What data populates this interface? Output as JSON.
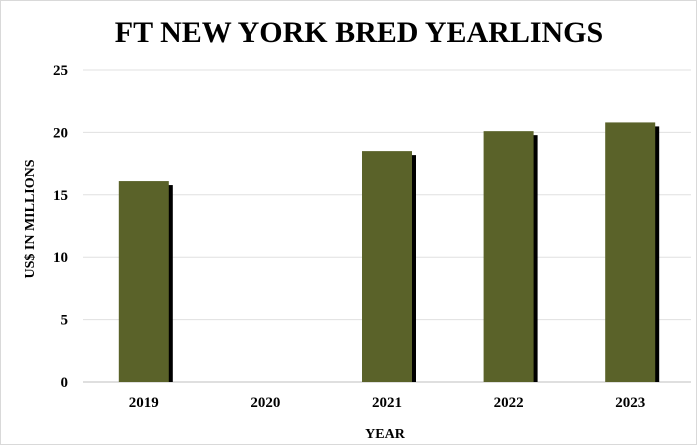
{
  "chart_data": {
    "type": "bar",
    "title": "FT NEW YORK BRED YEARLINGS",
    "xlabel": "YEAR",
    "ylabel": "US$ IN MILLIONS",
    "categories": [
      "2019",
      "2020",
      "2021",
      "2022",
      "2023"
    ],
    "values": [
      16.1,
      null,
      18.5,
      20.1,
      20.8
    ],
    "ylim": [
      0,
      25
    ],
    "yticks": [
      "0",
      "5",
      "10",
      "15",
      "20",
      "25"
    ],
    "grid": true,
    "legend": "none",
    "colors": {
      "bar": "#5a6229",
      "bar_shadow": "#000000",
      "grid": "#e0e0e0",
      "axis": "#bfbfbf"
    }
  }
}
